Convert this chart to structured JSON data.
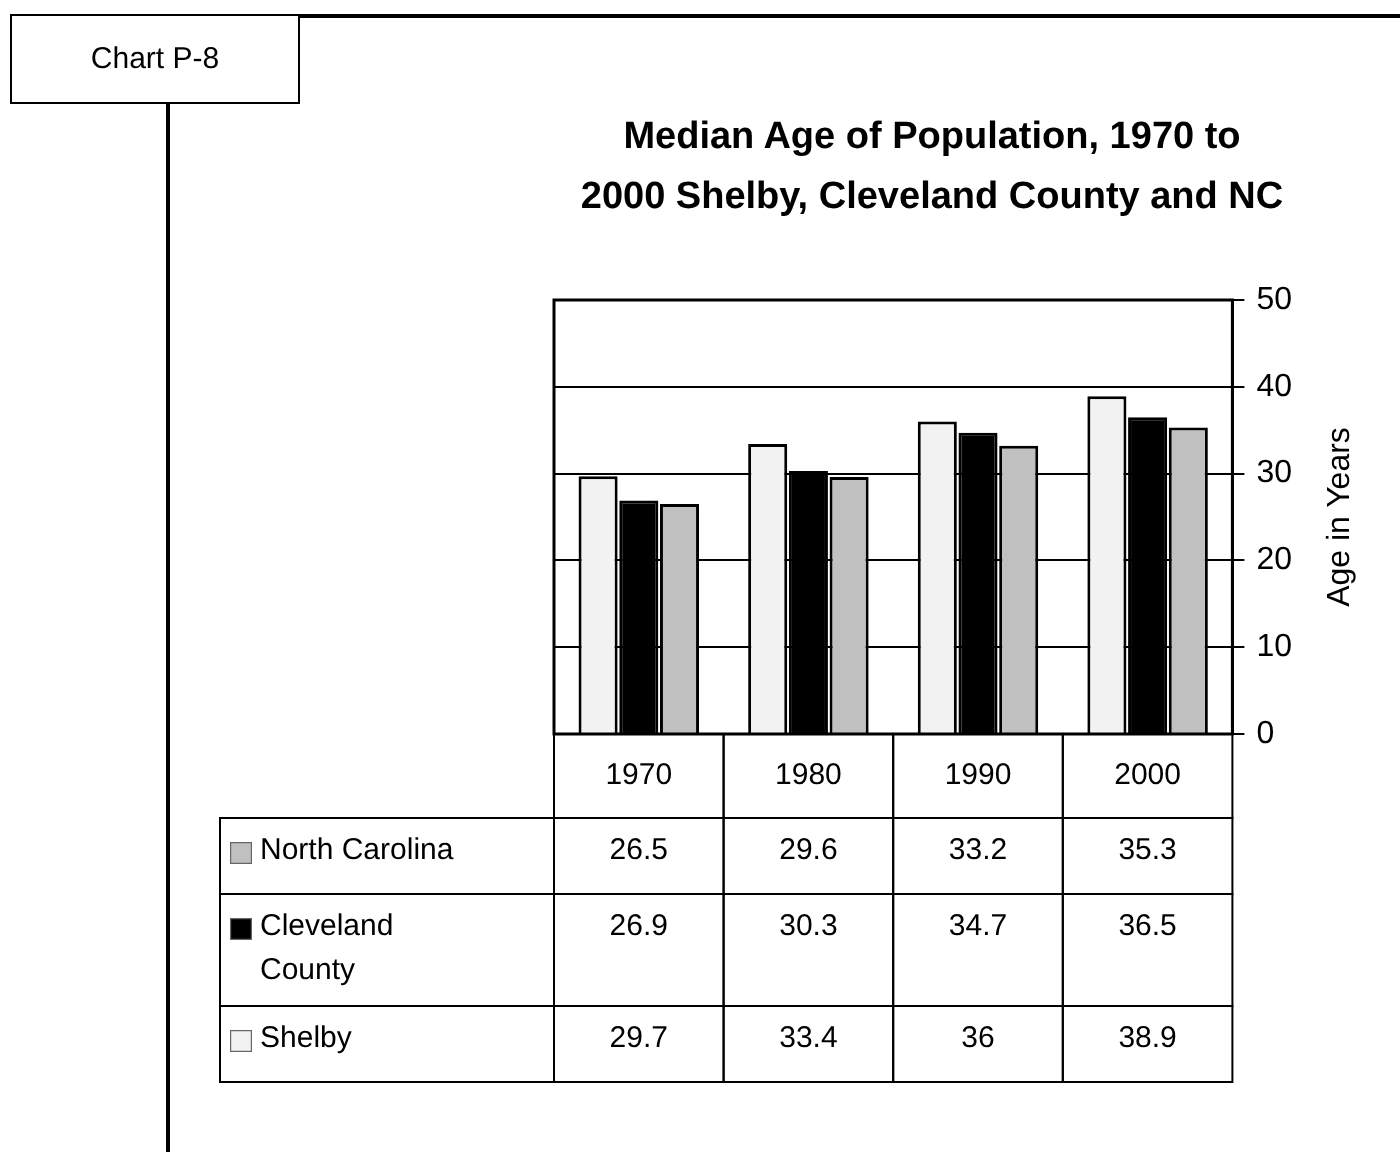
{
  "chart_data": {
    "type": "bar",
    "title": "Median Age of Population, 1970 to 2000 Shelby, Cleveland County and NC",
    "annotations": [
      "Chart P-8"
    ],
    "ylabel": "Age in Years",
    "categories": [
      "1970",
      "1980",
      "1990",
      "2000"
    ],
    "series": [
      {
        "name": "Shelby",
        "color": "#f2f2f2",
        "values": [
          29.7,
          33.4,
          36,
          38.9
        ]
      },
      {
        "name": "Cleveland County",
        "color": "#000000",
        "values": [
          26.9,
          30.3,
          34.7,
          36.5
        ]
      },
      {
        "name": "North Carolina",
        "color": "#c0c0c0",
        "values": [
          26.5,
          29.6,
          33.2,
          35.3
        ]
      }
    ],
    "ylim": [
      0,
      50
    ],
    "yticks": [
      0,
      10,
      20,
      30,
      40,
      50
    ],
    "grid": "y",
    "legend": "bottom",
    "data_labels": true
  }
}
